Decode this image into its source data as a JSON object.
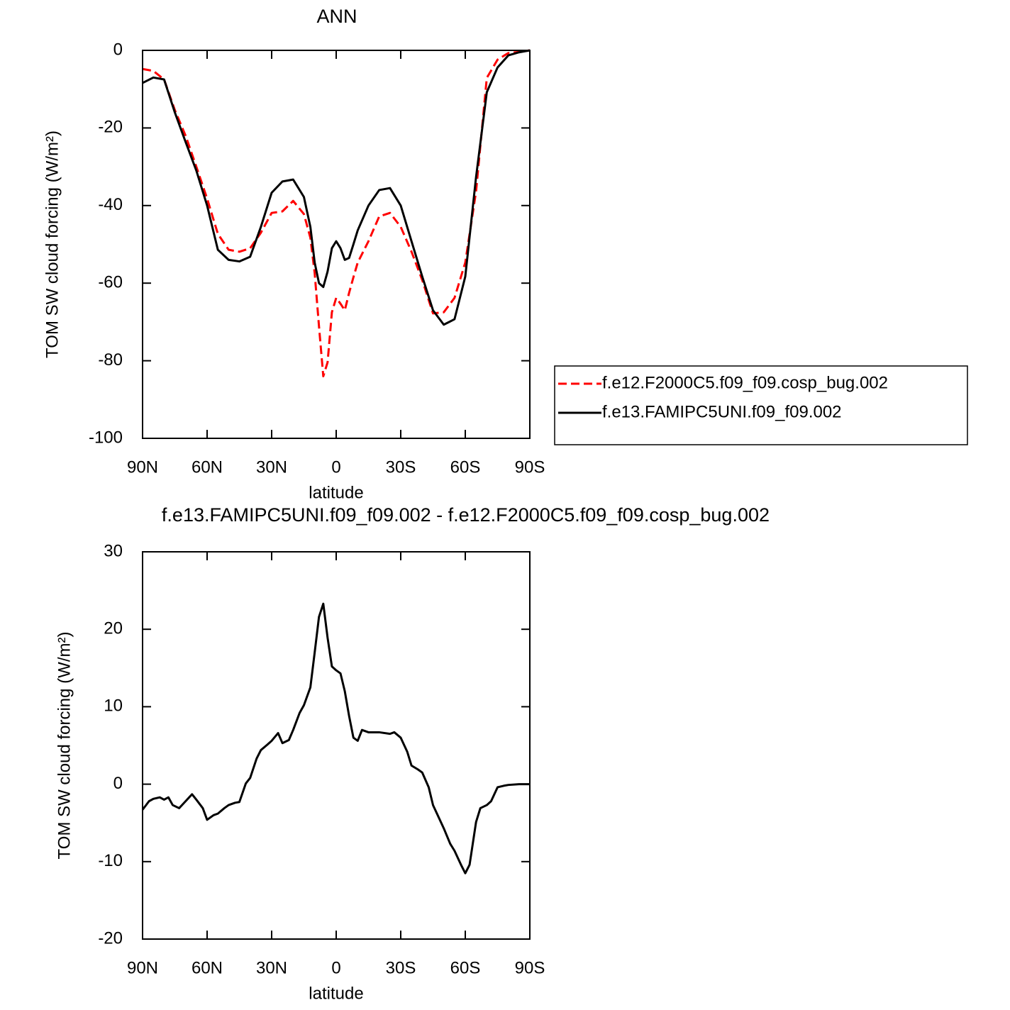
{
  "chart_data": [
    {
      "type": "line",
      "title": "ANN",
      "xlabel": "latitude",
      "ylabel": "TOM SW cloud forcing (W/m²)",
      "x": [
        90,
        85,
        80,
        75,
        70,
        65,
        60,
        55,
        50,
        45,
        40,
        35,
        30,
        25,
        20,
        15,
        12,
        10,
        8,
        6,
        4,
        2,
        0,
        -2,
        -4,
        -6,
        -8,
        -10,
        -15,
        -20,
        -25,
        -30,
        -35,
        -40,
        -45,
        -50,
        -55,
        -60,
        -65,
        -70,
        -75,
        -80,
        -85,
        -90
      ],
      "series": [
        {
          "name": "f.e12.F2000C5.f09_f09.cosp_bug.002",
          "color": "#ff0000",
          "line_style": "dashed",
          "values": [
            -4.8,
            -5.3,
            -7.5,
            -15.4,
            -22,
            -30,
            -38.2,
            -47.3,
            -51.4,
            -51.9,
            -51,
            -47,
            -41.9,
            -41.5,
            -38.8,
            -42.2,
            -48.3,
            -57.4,
            -71.1,
            -84,
            -80.4,
            -67.5,
            -63.8,
            -65.3,
            -67,
            -62.5,
            -58.5,
            -54.7,
            -49.2,
            -42.8,
            -41.9,
            -45.5,
            -51.9,
            -59.2,
            -67.8,
            -67.5,
            -63.8,
            -54.7,
            -36.4,
            -7.1,
            -2.4,
            -0.7,
            -0.4,
            0
          ]
        },
        {
          "name": "f.e13.FAMIPC5UNI.f09_f09.002",
          "color": "#000000",
          "line_style": "solid",
          "values": [
            -8.4,
            -7,
            -7.5,
            -16,
            -23.6,
            -31,
            -40,
            -51.4,
            -54,
            -54.4,
            -53.2,
            -45.5,
            -36.7,
            -33.8,
            -33.3,
            -37.8,
            -45.5,
            -54.7,
            -60,
            -61,
            -57,
            -51,
            -49.2,
            -51,
            -54,
            -53.5,
            -50,
            -46.4,
            -40,
            -36,
            -35.5,
            -40,
            -49.2,
            -58.3,
            -67,
            -70.7,
            -69.3,
            -58.3,
            -32.7,
            -10.8,
            -4.4,
            -1.3,
            -0.5,
            0
          ]
        }
      ],
      "xlim": [
        90,
        -90
      ],
      "xticks": [
        {
          "value": 90,
          "label": "90N"
        },
        {
          "value": 60,
          "label": "60N"
        },
        {
          "value": 30,
          "label": "30N"
        },
        0,
        {
          "value": -30,
          "label": "30S"
        },
        {
          "value": -60,
          "label": "60S"
        },
        {
          "value": -90,
          "label": "90S"
        }
      ],
      "ylim": [
        -100,
        0
      ],
      "yticks": [
        -100,
        -80,
        -60,
        -40,
        -20,
        0
      ],
      "legend": "right"
    },
    {
      "type": "line",
      "title": "f.e13.FAMIPC5UNI.f09_f09.002 - f.e12.F2000C5.f09_f09.cosp_bug.002",
      "xlabel": "latitude",
      "ylabel": "TOM SW cloud forcing (W/m²)",
      "x": [
        90,
        87,
        85,
        82,
        80,
        78,
        76,
        73,
        70,
        67,
        65,
        62,
        60,
        57,
        55,
        52,
        50,
        47,
        45,
        42,
        40,
        37,
        35,
        32,
        30,
        27,
        25,
        22,
        20,
        17,
        15,
        12,
        10,
        8,
        6,
        4,
        2,
        0,
        -2,
        -4,
        -6,
        -8,
        -10,
        -12,
        -15,
        -20,
        -25,
        -27,
        -30,
        -33,
        -35,
        -38,
        -40,
        -43,
        -45,
        -48,
        -50,
        -53,
        -55,
        -58,
        -60,
        -62,
        -65,
        -67,
        -70,
        -72,
        -75,
        -78,
        -80,
        -85,
        -90
      ],
      "values": [
        -3.3,
        -2.2,
        -1.9,
        -1.7,
        -2,
        -1.7,
        -2.7,
        -3.1,
        -2.2,
        -1.3,
        -2,
        -3.1,
        -4.6,
        -4,
        -3.8,
        -3.1,
        -2.7,
        -2.4,
        -2.3,
        0.1,
        0.8,
        3.3,
        4.4,
        5.1,
        5.6,
        6.6,
        5.3,
        5.7,
        7,
        9.2,
        10.2,
        12.5,
        17,
        21.6,
        23.3,
        18.9,
        15.2,
        14.7,
        14.3,
        12,
        8.8,
        6,
        5.6,
        7,
        6.7,
        6.7,
        6.5,
        6.7,
        6,
        4.2,
        2.4,
        1.9,
        1.5,
        -0.4,
        -2.7,
        -4.5,
        -5.7,
        -7.7,
        -8.6,
        -10.4,
        -11.5,
        -10.4,
        -4.9,
        -3.1,
        -2.7,
        -2.2,
        -0.4,
        -0.2,
        -0.1,
        0,
        0
      ],
      "color": "#000000",
      "xlim": [
        90,
        -90
      ],
      "xticks": [
        {
          "value": 90,
          "label": "90N"
        },
        {
          "value": 60,
          "label": "60N"
        },
        {
          "value": 30,
          "label": "30N"
        },
        0,
        {
          "value": -30,
          "label": "30S"
        },
        {
          "value": -60,
          "label": "60S"
        },
        {
          "value": -90,
          "label": "90S"
        }
      ],
      "ylim": [
        -20,
        30
      ],
      "yticks": [
        -20,
        -10,
        0,
        10,
        20,
        30
      ]
    }
  ]
}
